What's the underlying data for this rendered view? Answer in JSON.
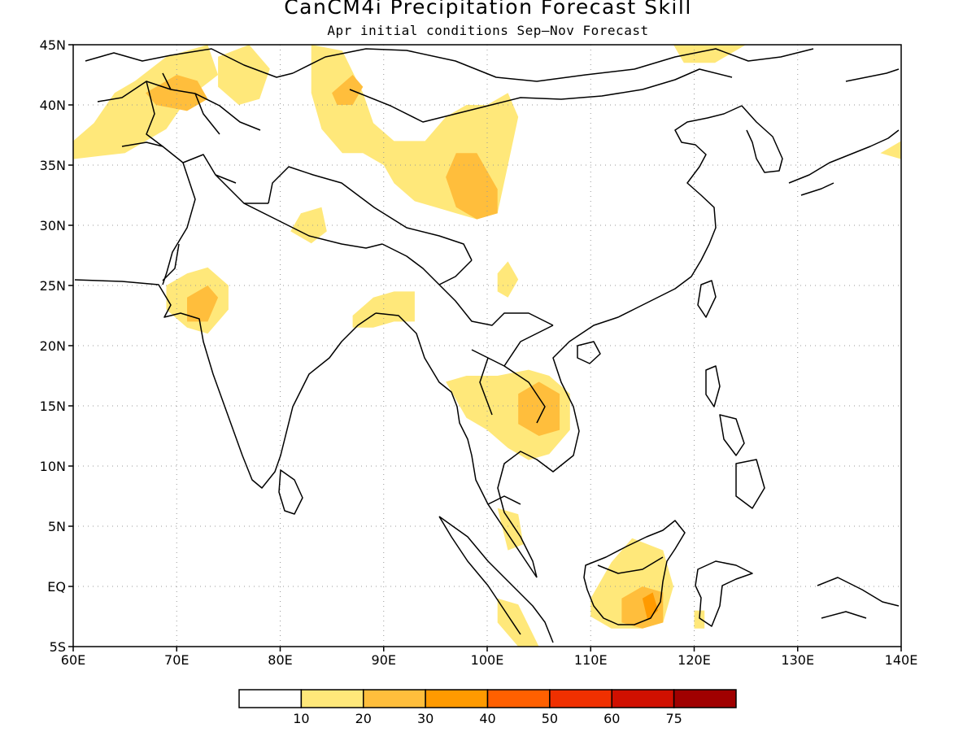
{
  "title": "CanCM4i Precipitation Forecast Skill",
  "subtitle": "Apr initial conditions   Sep–Nov Forecast",
  "map": {
    "lon_range": [
      60,
      140
    ],
    "lat_range": [
      -5,
      45
    ],
    "lon_ticks": [
      {
        "value": 60,
        "label": "60E"
      },
      {
        "value": 70,
        "label": "70E"
      },
      {
        "value": 80,
        "label": "80E"
      },
      {
        "value": 90,
        "label": "90E"
      },
      {
        "value": 100,
        "label": "100E"
      },
      {
        "value": 110,
        "label": "110E"
      },
      {
        "value": 120,
        "label": "120E"
      },
      {
        "value": 130,
        "label": "130E"
      },
      {
        "value": 140,
        "label": "140E"
      }
    ],
    "lat_ticks": [
      {
        "value": 45,
        "label": "45N"
      },
      {
        "value": 40,
        "label": "40N"
      },
      {
        "value": 35,
        "label": "35N"
      },
      {
        "value": 30,
        "label": "30N"
      },
      {
        "value": 25,
        "label": "25N"
      },
      {
        "value": 20,
        "label": "20N"
      },
      {
        "value": 15,
        "label": "15N"
      },
      {
        "value": 10,
        "label": "10N"
      },
      {
        "value": 5,
        "label": "5N"
      },
      {
        "value": 0,
        "label": "EQ"
      },
      {
        "value": -5,
        "label": "5S"
      }
    ],
    "grid": "dotted"
  },
  "legend": {
    "colors": [
      "#ffffff",
      "#ffe87a",
      "#ffbe3c",
      "#ff9a00",
      "#ff6000",
      "#f03000",
      "#d01000",
      "#a00000"
    ],
    "labels": [
      "10",
      "20",
      "30",
      "40",
      "50",
      "60",
      "75"
    ]
  },
  "skill_regions": [
    {
      "name": "kazakh-uzbek",
      "level": 1,
      "lonlat": [
        [
          60,
          37
        ],
        [
          62,
          38.5
        ],
        [
          64,
          41
        ],
        [
          66,
          42
        ],
        [
          69,
          44
        ],
        [
          73,
          45
        ],
        [
          74,
          42.5
        ],
        [
          71,
          40.5
        ],
        [
          69,
          38
        ],
        [
          65,
          36
        ],
        [
          60,
          35.5
        ]
      ]
    },
    {
      "name": "kyrgyz",
      "level": 2,
      "lonlat": [
        [
          67,
          41
        ],
        [
          70,
          42.5
        ],
        [
          72,
          42
        ],
        [
          73,
          40.5
        ],
        [
          71,
          39.5
        ],
        [
          68,
          40
        ]
      ]
    },
    {
      "name": "mongolia-west",
      "level": 1,
      "lonlat": [
        [
          74,
          44
        ],
        [
          77,
          45
        ],
        [
          79,
          43
        ],
        [
          78,
          40.5
        ],
        [
          76,
          40
        ],
        [
          74,
          41.5
        ]
      ]
    },
    {
      "name": "china-west-band",
      "level": 1,
      "lonlat": [
        [
          83,
          45
        ],
        [
          86,
          44.5
        ],
        [
          88,
          41
        ],
        [
          89,
          38.5
        ],
        [
          91,
          37
        ],
        [
          94,
          37
        ],
        [
          96,
          39
        ],
        [
          98,
          40
        ],
        [
          100,
          40
        ],
        [
          102,
          41
        ],
        [
          103,
          39
        ],
        [
          102,
          35
        ],
        [
          101,
          31
        ],
        [
          99,
          30.5
        ],
        [
          97,
          31
        ],
        [
          95,
          31.5
        ],
        [
          93,
          32
        ],
        [
          91,
          33.5
        ],
        [
          90,
          35
        ],
        [
          88,
          36
        ],
        [
          86,
          36
        ],
        [
          84,
          38
        ],
        [
          83,
          41
        ]
      ]
    },
    {
      "name": "tarim-core",
      "level": 2,
      "lonlat": [
        [
          85,
          41
        ],
        [
          87,
          42.5
        ],
        [
          88,
          41.5
        ],
        [
          87,
          40
        ],
        [
          85.5,
          40
        ]
      ]
    },
    {
      "name": "tibet-core",
      "level": 2,
      "lonlat": [
        [
          96,
          34
        ],
        [
          97,
          36
        ],
        [
          99,
          36
        ],
        [
          101,
          33
        ],
        [
          101,
          31
        ],
        [
          99,
          30.5
        ],
        [
          97,
          31.5
        ]
      ]
    },
    {
      "name": "himalaya-patch",
      "level": 1,
      "lonlat": [
        [
          82,
          31
        ],
        [
          84,
          31.5
        ],
        [
          84.5,
          29.5
        ],
        [
          83,
          28.5
        ],
        [
          81,
          29.5
        ]
      ]
    },
    {
      "name": "sichuan-patch",
      "level": 1,
      "lonlat": [
        [
          101,
          26
        ],
        [
          102,
          27
        ],
        [
          103,
          25.5
        ],
        [
          102,
          24
        ],
        [
          101,
          24.5
        ]
      ]
    },
    {
      "name": "gujarat",
      "level": 1,
      "lonlat": [
        [
          69,
          25
        ],
        [
          71,
          26
        ],
        [
          73,
          26.5
        ],
        [
          75,
          25
        ],
        [
          75,
          23
        ],
        [
          73,
          21
        ],
        [
          71,
          21.5
        ],
        [
          69,
          23
        ]
      ]
    },
    {
      "name": "gujarat-core",
      "level": 2,
      "lonlat": [
        [
          71,
          24
        ],
        [
          73,
          25
        ],
        [
          74,
          24
        ],
        [
          73,
          22
        ],
        [
          71,
          22
        ]
      ]
    },
    {
      "name": "bangladesh",
      "level": 1,
      "lonlat": [
        [
          87,
          22.5
        ],
        [
          89,
          24
        ],
        [
          91,
          24.5
        ],
        [
          93,
          24.5
        ],
        [
          93,
          22
        ],
        [
          91,
          22
        ],
        [
          89,
          21.5
        ],
        [
          87,
          21.5
        ]
      ]
    },
    {
      "name": "indochina",
      "level": 1,
      "lonlat": [
        [
          96,
          17
        ],
        [
          98,
          17.5
        ],
        [
          101,
          17.5
        ],
        [
          104,
          18
        ],
        [
          106,
          17.5
        ],
        [
          108,
          16
        ],
        [
          108,
          13
        ],
        [
          106,
          11
        ],
        [
          104,
          10.5
        ],
        [
          102,
          11.5
        ],
        [
          100,
          13
        ],
        [
          98,
          14
        ]
      ]
    },
    {
      "name": "cambodia-core",
      "level": 2,
      "lonlat": [
        [
          103,
          16
        ],
        [
          105,
          17
        ],
        [
          107,
          16
        ],
        [
          107,
          13
        ],
        [
          105,
          12.5
        ],
        [
          103,
          13.5
        ]
      ]
    },
    {
      "name": "malaya",
      "level": 1,
      "lonlat": [
        [
          101,
          6.5
        ],
        [
          103,
          6
        ],
        [
          103.5,
          3.5
        ],
        [
          102,
          3
        ]
      ]
    },
    {
      "name": "sumatra",
      "level": 1,
      "lonlat": [
        [
          101,
          -1
        ],
        [
          103,
          -1.5
        ],
        [
          105,
          -5
        ],
        [
          103,
          -5
        ],
        [
          101,
          -3
        ]
      ]
    },
    {
      "name": "borneo",
      "level": 1,
      "lonlat": [
        [
          110,
          -1
        ],
        [
          112,
          2
        ],
        [
          114,
          4
        ],
        [
          117,
          3
        ],
        [
          118,
          0
        ],
        [
          117,
          -3
        ],
        [
          115,
          -3.5
        ],
        [
          112,
          -3.5
        ],
        [
          110,
          -2.5
        ]
      ]
    },
    {
      "name": "borneo-core",
      "level": 2,
      "lonlat": [
        [
          113,
          -1
        ],
        [
          115,
          0
        ],
        [
          117,
          -0.5
        ],
        [
          117,
          -3
        ],
        [
          115,
          -3.5
        ],
        [
          113,
          -3
        ]
      ]
    },
    {
      "name": "borneo-inner",
      "level": 3,
      "lonlat": [
        [
          115,
          -1
        ],
        [
          116,
          -0.5
        ],
        [
          116.5,
          -2
        ],
        [
          115.5,
          -2.8
        ]
      ]
    },
    {
      "name": "sulawesi-patch",
      "level": 1,
      "lonlat": [
        [
          120,
          -2
        ],
        [
          121,
          -2
        ],
        [
          121,
          -3.5
        ],
        [
          120,
          -3.5
        ]
      ]
    },
    {
      "name": "mongolia-east",
      "level": 1,
      "lonlat": [
        [
          118,
          45
        ],
        [
          125,
          45
        ],
        [
          122,
          43.5
        ],
        [
          119,
          43.5
        ]
      ]
    },
    {
      "name": "japan-patch",
      "level": 1,
      "lonlat": [
        [
          138,
          36
        ],
        [
          140,
          37
        ],
        [
          140,
          35.5
        ]
      ]
    }
  ]
}
